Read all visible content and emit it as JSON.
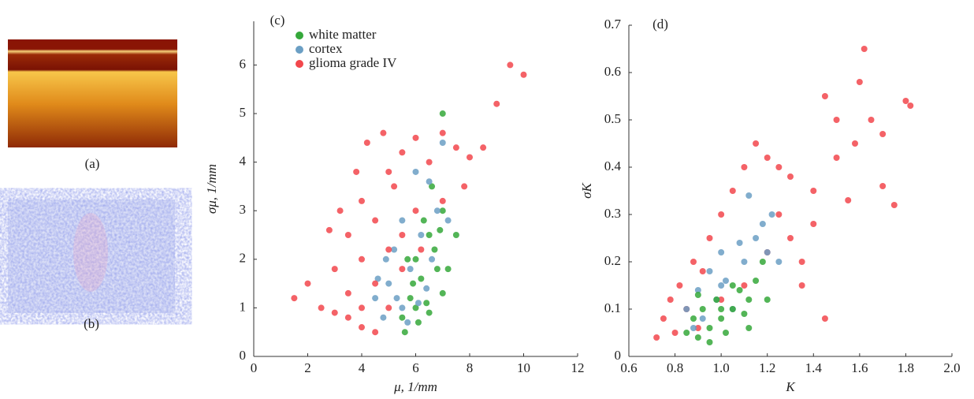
{
  "images": [
    {
      "label": "(a)"
    },
    {
      "label": "(b)"
    }
  ],
  "chart_data": [
    {
      "type": "scatter",
      "panel_label": "(c)",
      "xlabel": "μ, 1/mm",
      "ylabel": "σμ, 1/mm",
      "xlim": [
        0,
        12
      ],
      "ylim": [
        0,
        6.9
      ],
      "xticks": [
        0,
        2,
        4,
        6,
        8,
        10,
        12
      ],
      "yticks": [
        0,
        1,
        2,
        3,
        4,
        5,
        6
      ],
      "legend": "upper left",
      "series": [
        {
          "name": "white matter",
          "color": "#35a83a",
          "x": [
            5.5,
            5.8,
            6,
            6,
            6.2,
            6.5,
            6.5,
            6.8,
            7,
            7,
            5.6,
            6.3,
            6.7,
            7.2,
            7.5,
            5.9,
            6.1,
            6.4,
            6.9,
            7,
            6.6,
            5.7
          ],
          "values": [
            0.8,
            1.2,
            1.0,
            2.0,
            1.6,
            2.5,
            0.9,
            1.8,
            3.0,
            1.3,
            0.5,
            2.8,
            2.2,
            1.8,
            2.5,
            1.5,
            0.7,
            1.1,
            2.6,
            5.0,
            3.5,
            2.0
          ]
        },
        {
          "name": "cortex",
          "color": "#6b9fc4",
          "x": [
            4.5,
            4.8,
            5,
            5.2,
            5.5,
            5.5,
            5.8,
            6,
            6.2,
            6.5,
            6.8,
            7,
            5.3,
            4.9,
            6.4,
            6.6,
            7.2,
            5.7,
            6.1,
            4.6
          ],
          "values": [
            1.2,
            0.8,
            1.5,
            2.2,
            1.0,
            2.8,
            1.8,
            3.8,
            2.5,
            3.6,
            3.0,
            4.4,
            1.2,
            2.0,
            1.4,
            2.0,
            2.8,
            0.7,
            1.1,
            1.6
          ]
        },
        {
          "name": "glioma grade IV",
          "color": "#f2474c",
          "x": [
            1.5,
            2,
            2.5,
            3,
            3,
            3.5,
            3.5,
            4,
            4,
            4,
            4.5,
            4.5,
            4.5,
            5,
            5,
            5,
            5.5,
            5.5,
            6,
            6,
            6.5,
            7,
            7,
            7.5,
            8,
            8.5,
            9,
            9.5,
            10,
            3.2,
            3.8,
            4.2,
            4.8,
            5.2,
            2.8,
            3.5,
            6.2,
            7.8,
            4,
            5.5
          ],
          "values": [
            1.2,
            1.5,
            1.0,
            1.8,
            0.9,
            2.5,
            1.3,
            3.2,
            2.0,
            0.6,
            2.8,
            1.5,
            0.5,
            3.8,
            2.2,
            1.0,
            4.2,
            2.5,
            4.5,
            3.0,
            4.0,
            4.6,
            3.2,
            4.3,
            4.1,
            4.3,
            5.2,
            6.0,
            5.8,
            3.0,
            3.8,
            4.4,
            4.6,
            3.5,
            2.6,
            0.8,
            2.2,
            3.5,
            1.0,
            1.8
          ]
        }
      ]
    },
    {
      "type": "scatter",
      "panel_label": "(d)",
      "xlabel": "K",
      "ylabel": "σK",
      "xlim": [
        0.6,
        2.0
      ],
      "ylim": [
        0,
        0.7
      ],
      "xticks": [
        0.6,
        0.8,
        {
          "value": 1,
          "label": "1.0"
        },
        1.2,
        1.4,
        1.6,
        1.8,
        {
          "value": 2,
          "label": "2.0"
        }
      ],
      "yticks": [
        0,
        0.1,
        0.2,
        0.3,
        0.4,
        0.5,
        0.6,
        0.7
      ],
      "series": [
        {
          "color": "#f2474c",
          "x": [
            0.72,
            0.75,
            0.78,
            0.8,
            0.82,
            0.85,
            0.88,
            0.9,
            0.95,
            1.0,
            1.05,
            1.1,
            1.15,
            1.2,
            1.25,
            1.3,
            1.35,
            1.4,
            1.45,
            1.5,
            1.55,
            1.6,
            1.62,
            1.65,
            1.7,
            1.75,
            1.8,
            1.82,
            1.3,
            1.4,
            1.5,
            1.2,
            1.1,
            1.45,
            1.58,
            0.92,
            1.0,
            1.35,
            1.25,
            1.7
          ],
          "values": [
            0.04,
            0.08,
            0.12,
            0.05,
            0.15,
            0.1,
            0.2,
            0.06,
            0.25,
            0.3,
            0.35,
            0.4,
            0.45,
            0.42,
            0.3,
            0.38,
            0.2,
            0.35,
            0.08,
            0.5,
            0.33,
            0.58,
            0.65,
            0.5,
            0.36,
            0.32,
            0.54,
            0.53,
            0.25,
            0.28,
            0.42,
            0.22,
            0.15,
            0.55,
            0.45,
            0.18,
            0.12,
            0.15,
            0.4,
            0.47
          ]
        },
        {
          "color": "#6b9fc4",
          "x": [
            0.85,
            0.9,
            0.92,
            0.95,
            0.98,
            1.0,
            1.02,
            1.05,
            1.1,
            1.15,
            1.18,
            1.2,
            1.22,
            0.88,
            1.0,
            1.08,
            1.12,
            1.25
          ],
          "values": [
            0.1,
            0.14,
            0.08,
            0.18,
            0.12,
            0.22,
            0.16,
            0.1,
            0.2,
            0.25,
            0.28,
            0.22,
            0.3,
            0.06,
            0.15,
            0.24,
            0.34,
            0.2
          ]
        },
        {
          "color": "#35a83a",
          "x": [
            0.85,
            0.88,
            0.9,
            0.92,
            0.95,
            0.98,
            1.0,
            1.02,
            1.05,
            1.08,
            1.1,
            1.12,
            1.15,
            1.18,
            0.95,
            1.0,
            1.05,
            1.12,
            0.9,
            1.2
          ],
          "values": [
            0.05,
            0.08,
            0.04,
            0.1,
            0.06,
            0.12,
            0.08,
            0.05,
            0.1,
            0.14,
            0.09,
            0.12,
            0.16,
            0.2,
            0.03,
            0.1,
            0.15,
            0.06,
            0.13,
            0.12
          ]
        }
      ]
    }
  ]
}
